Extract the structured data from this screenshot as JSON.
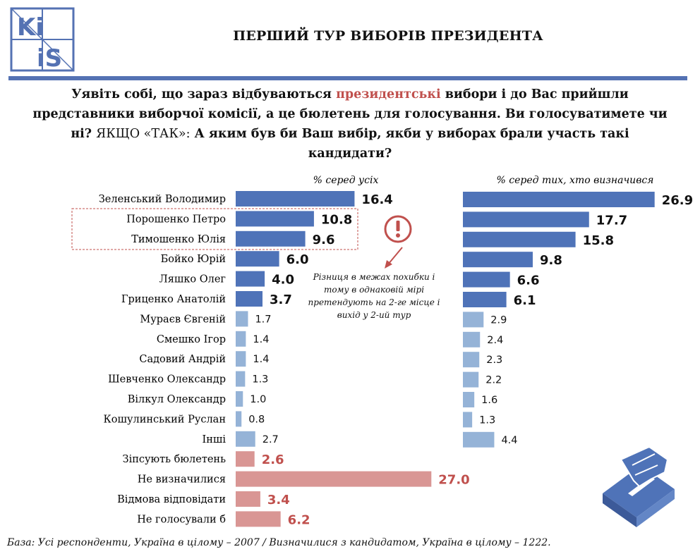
{
  "logo": {
    "icon": "kiis-logo-icon",
    "text_top": "Ki",
    "text_bottom": "iS",
    "color": "#5472b3"
  },
  "title": "ПЕРШИЙ ТУР ВИБОРІВ ПРЕЗИДЕНТА",
  "question": {
    "part1": "Уявіть собі, що зараз відбуваються ",
    "highlight": "президентські",
    "part2": " вибори і до Вас прийшли представники виборчої комісії, а це бюлетень для голосування. Ви голосуватимете чи ні? ",
    "part3": "ЯКЩО «ТАК»:",
    "part4": " А яким був би Ваш вибір, якби у виборах брали участь такі кандидати?"
  },
  "note": "Різниця в межах похибки і тому в однаковій мірі претендують на 2-ге місце і вихід у 2-ий тур",
  "footnote": "База: Усі респонденти, Україна в цілому – 2007 / Визначилися з кандидатом, Україна в цілому – 1222.",
  "colors": {
    "dark_blue": "#4f73b8",
    "light_blue": "#95b3d7",
    "pink": "#d99694",
    "red_label": "#c0504d",
    "box": "#c0504d"
  },
  "chart_data": [
    {
      "type": "bar",
      "orientation": "horizontal",
      "subtitle": "% серед усіх",
      "categories": [
        "Зеленський Володимир",
        "Порошенко Петро",
        "Тимошенко Юлія",
        "Бойко Юрій",
        "Ляшко Олег",
        "Гриценко Анатолій",
        "Мураєв Євгеній",
        "Смешко Ігор",
        "Садовий Андрій",
        "Шевченко Олександр",
        "Вілкул Олександр",
        "Кошулинський Руслан",
        "Інші",
        "Зіпсують бюлетень",
        "Не визначилися",
        "Відмова відповідати",
        "Не голосували б"
      ],
      "values": [
        16.4,
        10.8,
        9.6,
        6.0,
        4.0,
        3.7,
        1.7,
        1.4,
        1.4,
        1.3,
        1.0,
        0.8,
        2.7,
        2.6,
        27.0,
        3.4,
        6.2
      ],
      "labels": [
        "16.4",
        "10.8",
        "9.6",
        "6.0",
        "4.0",
        "3.7",
        "1.7",
        "1.4",
        "1.4",
        "1.3",
        "1.0",
        "0.8",
        "2.7",
        "2.6",
        "27.0",
        "3.4",
        "6.2"
      ],
      "bar_styles": [
        "dark",
        "dark",
        "dark",
        "dark",
        "dark",
        "dark",
        "light",
        "light",
        "light",
        "light",
        "light",
        "light",
        "light",
        "pink",
        "pink",
        "pink",
        "pink"
      ]
    },
    {
      "type": "bar",
      "orientation": "horizontal",
      "subtitle": "% серед тих, хто визначився",
      "categories": [
        "Зеленський Володимир",
        "Порошенко Петро",
        "Тимошенко Юлія",
        "Бойко Юрій",
        "Ляшко Олег",
        "Гриценко Анатолій",
        "Мураєв Євгеній",
        "Смешко Ігор",
        "Садовий Андрій",
        "Шевченко Олександр",
        "Вілкул Олександр",
        "Кошулинський Руслан",
        "Інші"
      ],
      "values": [
        26.9,
        17.7,
        15.8,
        9.8,
        6.6,
        6.1,
        2.9,
        2.4,
        2.3,
        2.2,
        1.6,
        1.3,
        4.4
      ],
      "labels": [
        "26.9",
        "17.7",
        "15.8",
        "9.8",
        "6.6",
        "6.1",
        "2.9",
        "2.4",
        "2.3",
        "2.2",
        "1.6",
        "1.3",
        "4.4"
      ],
      "bar_styles": [
        "dark",
        "dark",
        "dark",
        "dark",
        "dark",
        "dark",
        "light",
        "light",
        "light",
        "light",
        "light",
        "light",
        "light"
      ]
    }
  ]
}
